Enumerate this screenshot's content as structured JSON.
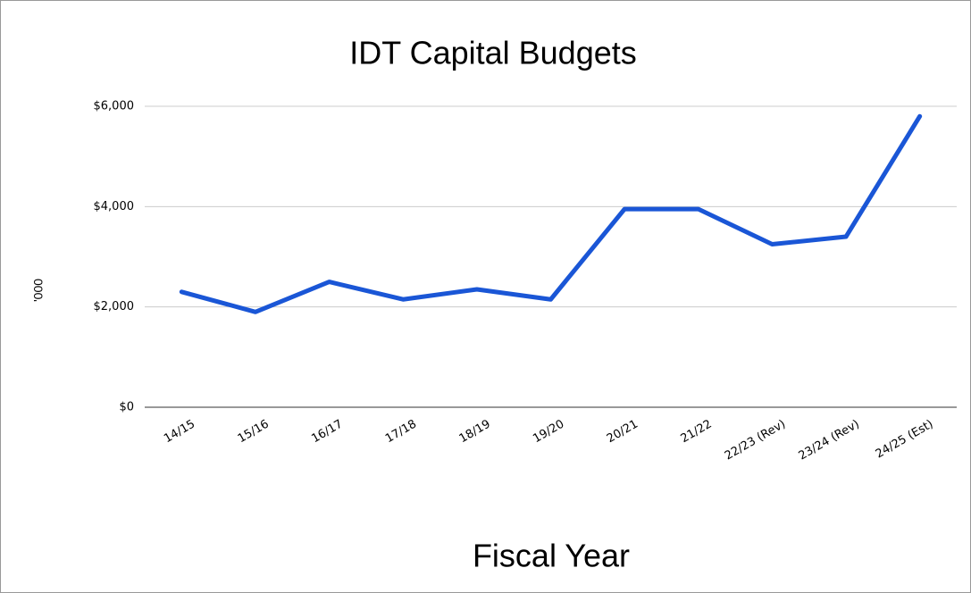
{
  "chart_data": {
    "type": "line",
    "title": "IDT Capital Budgets",
    "x_label": "Fiscal Year",
    "y_label": "'000",
    "categories": [
      "14/15",
      "15/16",
      "16/17",
      "17/18",
      "18/19",
      "19/20",
      "20/21",
      "21/22",
      "22/23 (Rev)",
      "23/24 (Rev)",
      "24/25 (Est)"
    ],
    "series": [
      {
        "name": "IDT Capital Budgets",
        "color": "#1a56d6",
        "values": [
          2300,
          1900,
          2500,
          2150,
          2350,
          2150,
          3950,
          3950,
          3250,
          3400,
          5800
        ]
      }
    ],
    "ylim": [
      0,
      6000
    ],
    "yticks": [
      {
        "value": 0,
        "label": "$0"
      },
      {
        "value": 2000,
        "label": "$2,000"
      },
      {
        "value": 4000,
        "label": "$4,000"
      },
      {
        "value": 6000,
        "label": "$6,000"
      }
    ],
    "grid": true
  }
}
